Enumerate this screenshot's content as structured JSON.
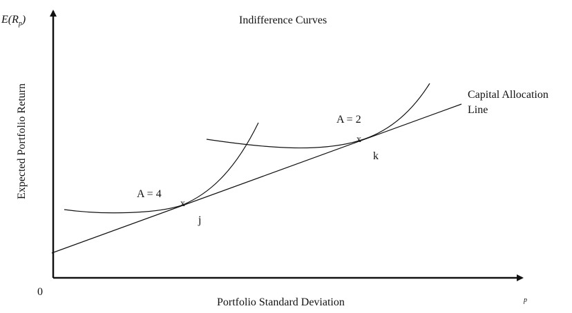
{
  "title": "Indifference Curves",
  "axes": {
    "y_symbol": "E(R",
    "y_symbol_sub": "p",
    "y_symbol_close": ")",
    "y_label": "Expected Portfolio Return",
    "x_label": "Portfolio Standard Deviation",
    "x_symbol_sub": "p",
    "origin": "0"
  },
  "capital_allocation_line": {
    "label_line1": "Capital Allocation",
    "label_line2": "Line"
  },
  "curves": [
    {
      "label": "A = 4",
      "tangent_marker": "x",
      "point_label": "j"
    },
    {
      "label": "A = 2",
      "tangent_marker": "x",
      "point_label": "k"
    }
  ],
  "colors": {
    "line": "#111111",
    "background": "#ffffff"
  }
}
